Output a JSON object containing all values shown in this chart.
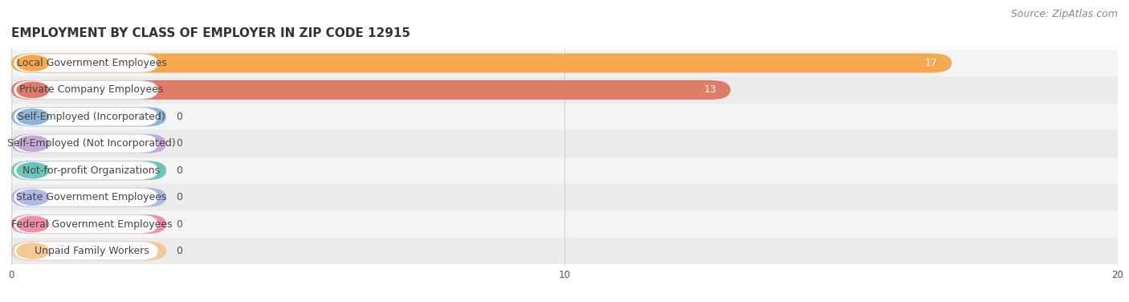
{
  "title": "EMPLOYMENT BY CLASS OF EMPLOYER IN ZIP CODE 12915",
  "source": "Source: ZipAtlas.com",
  "categories": [
    "Local Government Employees",
    "Private Company Employees",
    "Self-Employed (Incorporated)",
    "Self-Employed (Not Incorporated)",
    "Not-for-profit Organizations",
    "State Government Employees",
    "Federal Government Employees",
    "Unpaid Family Workers"
  ],
  "values": [
    17,
    13,
    0,
    0,
    0,
    0,
    0,
    0
  ],
  "bar_colors": [
    "#F5A84E",
    "#E07B6A",
    "#91B4D9",
    "#C4A8D8",
    "#6DC4B8",
    "#B0B8E8",
    "#F08FAA",
    "#F5C897"
  ],
  "label_bg_colors": [
    "#FFFFFF",
    "#FFFFFF",
    "#FFFFFF",
    "#FFFFFF",
    "#FFFFFF",
    "#FFFFFF",
    "#FFFFFF",
    "#FFFFFF"
  ],
  "row_bg_colors": [
    "#F5F5F5",
    "#EFEFEF",
    "#F5F5F5",
    "#EFEFEF",
    "#F5F5F5",
    "#EFEFEF",
    "#F5F5F5",
    "#EFEFEF"
  ],
  "xlim": [
    0,
    20
  ],
  "xticks": [
    0,
    10,
    20
  ],
  "title_fontsize": 11,
  "source_fontsize": 9,
  "label_fontsize": 9,
  "value_fontsize": 9,
  "background_color": "#FFFFFF",
  "grid_color": "#CCCCCC",
  "zero_bar_width": 2.8
}
